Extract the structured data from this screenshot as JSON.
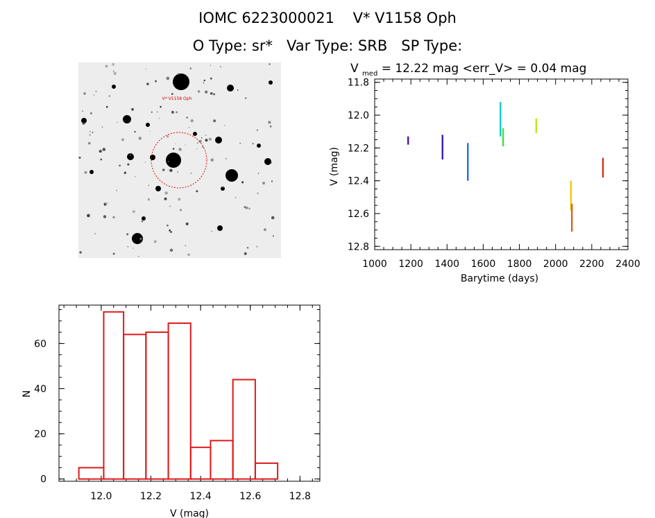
{
  "header": {
    "line1": "IOMC 6223000021    V* V1158 Oph",
    "line2": "O Type: sr*   Var Type: SRB   SP Type:"
  },
  "stamp": {
    "target_label": "V* V1158 Oph",
    "colors": {
      "circle": "#e00000",
      "label": "#cc0000"
    }
  },
  "lightcurve": {
    "title_prefix": "V",
    "title_sub": "med",
    "title_rest": " = 12.22 mag <err_V> = 0.04 mag"
  },
  "chart_data": [
    {
      "type": "scatter",
      "xlabel": "Barytime (days)",
      "ylabel": "V (mag)",
      "xlim": [
        1000,
        2400
      ],
      "ylim": [
        12.82,
        11.78
      ],
      "y_inverted": true,
      "x_ticks": [
        1000,
        1200,
        1400,
        1600,
        1800,
        2000,
        2200,
        2400
      ],
      "y_ticks": [
        11.8,
        12.0,
        12.2,
        12.4,
        12.6,
        12.8
      ],
      "tick_labels_x": [
        "1000",
        "1200",
        "1400",
        "1600",
        "1800",
        "2000",
        "2200",
        "2400"
      ],
      "tick_labels_y": [
        "11.8",
        "12.0",
        "12.2",
        "12.4",
        "12.6",
        "12.8"
      ],
      "groups": [
        {
          "x": 1185,
          "y_min": 12.13,
          "y_max": 12.18,
          "color": "#5a0fa0"
        },
        {
          "x": 1375,
          "y_min": 12.12,
          "y_max": 12.27,
          "color": "#3a1aa8"
        },
        {
          "x": 1515,
          "y_min": 12.17,
          "y_max": 12.4,
          "color": "#1e6fd8"
        },
        {
          "x": 1695,
          "y_min": 11.92,
          "y_max": 12.13,
          "color": "#10d0c8"
        },
        {
          "x": 1710,
          "y_min": 12.08,
          "y_max": 12.19,
          "color": "#40e040"
        },
        {
          "x": 1893,
          "y_min": 12.02,
          "y_max": 12.11,
          "color": "#b0ec18"
        },
        {
          "x": 2085,
          "y_min": 12.4,
          "y_max": 12.58,
          "color": "#f0c800"
        },
        {
          "x": 2090,
          "y_min": 12.54,
          "y_max": 12.71,
          "color": "#e06018"
        },
        {
          "x": 2262,
          "y_min": 12.26,
          "y_max": 12.38,
          "color": "#d03020"
        }
      ]
    },
    {
      "type": "bar",
      "subtype": "histogram",
      "xlabel": "V (mag)",
      "ylabel": "N",
      "xlim": [
        11.83,
        12.88
      ],
      "ylim": [
        -1,
        77
      ],
      "x_ticks": [
        12.0,
        12.2,
        12.4,
        12.6,
        12.8
      ],
      "y_ticks": [
        0,
        20,
        40,
        60
      ],
      "tick_labels_x": [
        "12.0",
        "12.2",
        "12.4",
        "12.6",
        "12.8"
      ],
      "tick_labels_y": [
        "0",
        "20",
        "40",
        "60"
      ],
      "bin_edges": [
        11.91,
        12.01,
        12.09,
        12.18,
        12.27,
        12.36,
        12.44,
        12.53,
        12.62,
        12.71
      ],
      "counts": [
        5,
        74,
        64,
        65,
        69,
        14,
        17,
        44,
        7
      ],
      "bar_color": "#dd1a1a"
    }
  ]
}
